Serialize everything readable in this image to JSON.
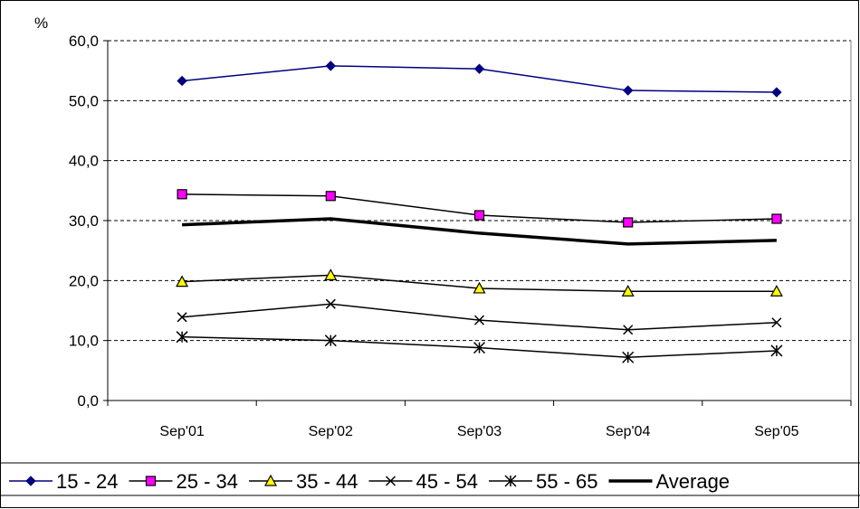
{
  "chart_data": {
    "type": "line",
    "title": "",
    "xlabel": "",
    "ylabel": "%",
    "categories": [
      "Sep'01",
      "Sep'02",
      "Sep'03",
      "Sep'04",
      "Sep'05"
    ],
    "ylim": [
      0,
      60
    ],
    "yticks": [
      "0,0",
      "10,0",
      "20,0",
      "30,0",
      "40,0",
      "50,0",
      "60,0"
    ],
    "grid": "horizontal dashed",
    "legend_position": "bottom",
    "series": [
      {
        "name": "15 - 24",
        "values": [
          53.3,
          55.8,
          55.3,
          51.7,
          51.4
        ],
        "marker": "diamond",
        "color": "#000080",
        "fill": "#000080"
      },
      {
        "name": "25 - 34",
        "values": [
          34.4,
          34.1,
          30.9,
          29.7,
          30.3
        ],
        "marker": "square",
        "color": "#000000",
        "fill": "#ff00ff"
      },
      {
        "name": "35 - 44",
        "values": [
          19.8,
          20.9,
          18.7,
          18.2,
          18.2
        ],
        "marker": "triangle",
        "color": "#000000",
        "fill": "#ffff00"
      },
      {
        "name": "45 - 54",
        "values": [
          13.9,
          16.1,
          13.4,
          11.8,
          13.0
        ],
        "marker": "x",
        "color": "#000000",
        "fill": "none"
      },
      {
        "name": "55 - 65",
        "values": [
          10.6,
          10.0,
          8.8,
          7.2,
          8.3
        ],
        "marker": "star",
        "color": "#000000",
        "fill": "none"
      },
      {
        "name": "Average",
        "values": [
          29.3,
          30.3,
          27.9,
          26.1,
          26.7
        ],
        "marker": "none",
        "color": "#000000",
        "fill": "none",
        "thick": true
      }
    ]
  }
}
